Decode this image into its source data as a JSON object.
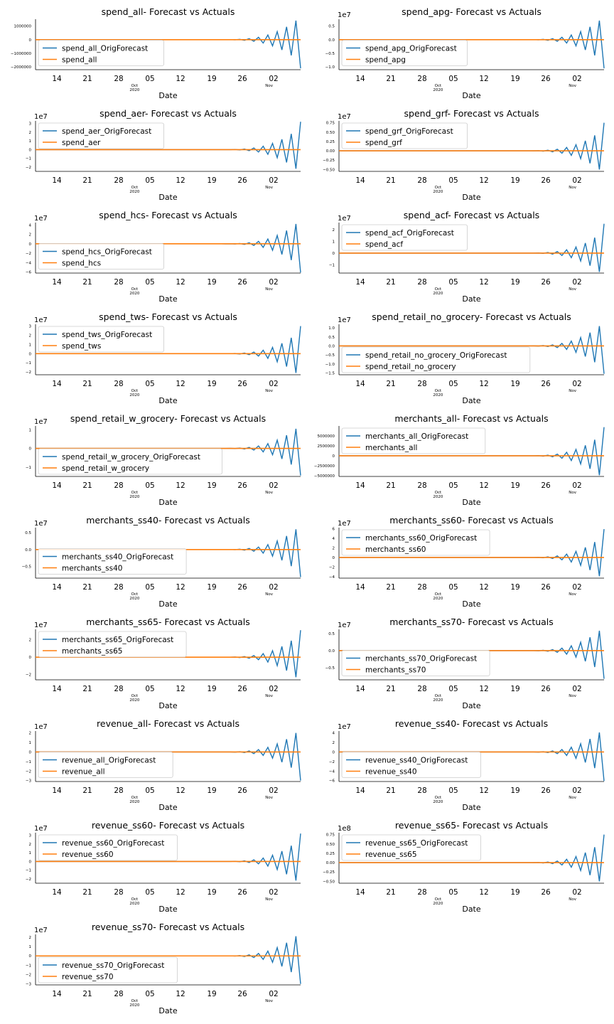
{
  "chart_data": [
    {
      "type": "line",
      "title": "spend_all- Forecast vs Actuals",
      "xlabel": "Date",
      "exponent": "",
      "yticks": [
        "1000000",
        "0",
        "−1000000",
        "−2000000"
      ],
      "ytick_values": [
        1000000,
        0,
        -1000000,
        -2000000
      ],
      "ylim": [
        -2200000,
        1500000
      ],
      "legend_loc": "center-left",
      "series": [
        {
          "name": "spend_all_OrigForecast",
          "color": "#1f77b4",
          "amplitude_end": 1400000,
          "final": -2100000
        },
        {
          "name": "spend_all",
          "color": "#ff7f0e",
          "value": 0
        }
      ]
    },
    {
      "type": "line",
      "title": "spend_apg- Forecast vs Actuals",
      "xlabel": "Date",
      "exponent": "1e7",
      "yticks": [
        "0.5",
        "0.0",
        "−0.5",
        "−1.0"
      ],
      "ytick_values": [
        0.5,
        0,
        -0.5,
        -1.0
      ],
      "ylim": [
        -1.1,
        0.75
      ],
      "legend_loc": "center-left",
      "series": [
        {
          "name": "spend_apg_OrigForecast",
          "color": "#1f77b4",
          "amplitude_end": 0.7,
          "final": -1.05
        },
        {
          "name": "spend_apg",
          "color": "#ff7f0e",
          "value": 0
        }
      ]
    },
    {
      "type": "line",
      "title": "spend_aer- Forecast vs Actuals",
      "xlabel": "Date",
      "exponent": "1e7",
      "yticks": [
        "3",
        "2",
        "1",
        "0",
        "−1",
        "−2"
      ],
      "ytick_values": [
        3,
        2,
        1,
        0,
        -1,
        -2
      ],
      "ylim": [
        -2.5,
        3.3
      ],
      "legend_loc": "top-left",
      "series": [
        {
          "name": "spend_aer_OrigForecast",
          "color": "#1f77b4",
          "amplitude_end": -2.2,
          "final": 3.2
        },
        {
          "name": "spend_aer",
          "color": "#ff7f0e",
          "value": 0
        }
      ]
    },
    {
      "type": "line",
      "title": "spend_grf- Forecast vs Actuals",
      "xlabel": "Date",
      "exponent": "1e7",
      "yticks": [
        "0.75",
        "0.50",
        "0.25",
        "0.00",
        "−0.25",
        "−0.50"
      ],
      "ytick_values": [
        0.75,
        0.5,
        0.25,
        0,
        -0.25,
        -0.5
      ],
      "ylim": [
        -0.55,
        0.8
      ],
      "legend_loc": "top-left",
      "series": [
        {
          "name": "spend_grf_OrigForecast",
          "color": "#1f77b4",
          "amplitude_end": -0.5,
          "final": 0.75
        },
        {
          "name": "spend_grf",
          "color": "#ff7f0e",
          "value": 0
        }
      ]
    },
    {
      "type": "line",
      "title": "spend_hcs- Forecast vs Actuals",
      "xlabel": "Date",
      "exponent": "1e7",
      "yticks": [
        "4",
        "2",
        "0",
        "−2",
        "−4",
        "−6"
      ],
      "ytick_values": [
        4,
        2,
        0,
        -2,
        -4,
        -6
      ],
      "ylim": [
        -6.2,
        4.5
      ],
      "legend_loc": "center-left",
      "series": [
        {
          "name": "spend_hcs_OrigForecast",
          "color": "#1f77b4",
          "amplitude_end": 4.2,
          "final": -6.1
        },
        {
          "name": "spend_hcs",
          "color": "#ff7f0e",
          "value": 0
        }
      ]
    },
    {
      "type": "line",
      "title": "spend_acf- Forecast vs Actuals",
      "xlabel": "Date",
      "exponent": "1e7",
      "yticks": [
        "2",
        "1",
        "0",
        "−1"
      ],
      "ytick_values": [
        2,
        1,
        0,
        -1
      ],
      "ylim": [
        -1.7,
        2.6
      ],
      "legend_loc": "top-left",
      "series": [
        {
          "name": "spend_acf_OrigForecast",
          "color": "#1f77b4",
          "amplitude_end": -1.6,
          "final": 2.5
        },
        {
          "name": "spend_acf",
          "color": "#ff7f0e",
          "value": 0
        }
      ]
    },
    {
      "type": "line",
      "title": "spend_tws- Forecast vs Actuals",
      "xlabel": "Date",
      "exponent": "1e7",
      "yticks": [
        "3",
        "2",
        "1",
        "0",
        "−1",
        "−2"
      ],
      "ytick_values": [
        3,
        2,
        1,
        0,
        -1,
        -2
      ],
      "ylim": [
        -2.3,
        3.2
      ],
      "legend_loc": "top-left",
      "series": [
        {
          "name": "spend_tws_OrigForecast",
          "color": "#1f77b4",
          "amplitude_end": -2.1,
          "final": 3.0
        },
        {
          "name": "spend_tws",
          "color": "#ff7f0e",
          "value": 0
        }
      ]
    },
    {
      "type": "line",
      "title": "spend_retail_no_grocery- Forecast vs Actuals",
      "xlabel": "Date",
      "exponent": "1e7",
      "yticks": [
        "1.0",
        "0.5",
        "0.0",
        "−0.5",
        "−1.0",
        "−1.5"
      ],
      "ytick_values": [
        1.0,
        0.5,
        0,
        -0.5,
        -1.0,
        -1.5
      ],
      "ylim": [
        -1.6,
        1.2
      ],
      "legend_loc": "bottom-left",
      "series": [
        {
          "name": "spend_retail_no_grocery_OrigForecast",
          "color": "#1f77b4",
          "amplitude_end": 1.1,
          "final": -1.55
        },
        {
          "name": "spend_retail_no_grocery",
          "color": "#ff7f0e",
          "value": 0
        }
      ]
    },
    {
      "type": "line",
      "title": "spend_retail_w_grocery- Forecast vs Actuals",
      "xlabel": "Date",
      "exponent": "1e7",
      "yticks": [
        "1",
        "0",
        "−1"
      ],
      "ytick_values": [
        1,
        0,
        -1
      ],
      "ylim": [
        -1.5,
        1.2
      ],
      "legend_loc": "bottom-left",
      "series": [
        {
          "name": "spend_retail_w_grocery_OrigForecast",
          "color": "#1f77b4",
          "amplitude_end": 1.05,
          "final": -1.45
        },
        {
          "name": "spend_retail_w_grocery",
          "color": "#ff7f0e",
          "value": 0
        }
      ]
    },
    {
      "type": "line",
      "title": "merchants_all- Forecast vs Actuals",
      "xlabel": "Date",
      "exponent": "",
      "yticks": [
        "5000000",
        "2500000",
        "0",
        "−2500000",
        "−5000000"
      ],
      "ytick_values": [
        5000000,
        2500000,
        0,
        -2500000,
        -5000000
      ],
      "ylim": [
        -5200000,
        7500000
      ],
      "legend_loc": "top-left",
      "series": [
        {
          "name": "merchants_all_OrigForecast",
          "color": "#1f77b4",
          "amplitude_end": -4900000,
          "final": 7200000
        },
        {
          "name": "merchants_all",
          "color": "#ff7f0e",
          "value": 0
        }
      ]
    },
    {
      "type": "line",
      "title": "merchants_ss40- Forecast vs Actuals",
      "xlabel": "Date",
      "exponent": "1e7",
      "yticks": [
        "0.5",
        "0.0",
        "−0.5"
      ],
      "ytick_values": [
        0.5,
        0,
        -0.5
      ],
      "ylim": [
        -0.85,
        0.65
      ],
      "legend_loc": "center-left",
      "series": [
        {
          "name": "merchants_ss40_OrigForecast",
          "color": "#1f77b4",
          "amplitude_end": 0.6,
          "final": -0.82
        },
        {
          "name": "merchants_ss40",
          "color": "#ff7f0e",
          "value": 0
        }
      ]
    },
    {
      "type": "line",
      "title": "merchants_ss60- Forecast vs Actuals",
      "xlabel": "Date",
      "exponent": "1e7",
      "yticks": [
        "6",
        "4",
        "2",
        "0",
        "−2",
        "−4"
      ],
      "ytick_values": [
        6,
        4,
        2,
        0,
        -2,
        -4
      ],
      "ylim": [
        -4.3,
        6.2
      ],
      "legend_loc": "top-left",
      "series": [
        {
          "name": "merchants_ss60_OrigForecast",
          "color": "#1f77b4",
          "amplitude_end": -3.9,
          "final": 5.9
        },
        {
          "name": "merchants_ss60",
          "color": "#ff7f0e",
          "value": 0
        }
      ]
    },
    {
      "type": "line",
      "title": "merchants_ss65- Forecast vs Actuals",
      "xlabel": "Date",
      "exponent": "1e7",
      "yticks": [
        "2",
        "0",
        "−2"
      ],
      "ytick_values": [
        2,
        0,
        -2
      ],
      "ylim": [
        -2.6,
        3.2
      ],
      "legend_loc": "top-left",
      "series": [
        {
          "name": "merchants_ss65_OrigForecast",
          "color": "#1f77b4",
          "amplitude_end": -2.3,
          "final": 3.1
        },
        {
          "name": "merchants_ss65",
          "color": "#ff7f0e",
          "value": 0
        }
      ]
    },
    {
      "type": "line",
      "title": "merchants_ss70- Forecast vs Actuals",
      "xlabel": "Date",
      "exponent": "1e7",
      "yticks": [
        "0.5",
        "0.0",
        "−0.5"
      ],
      "ytick_values": [
        0.5,
        0,
        -0.5
      ],
      "ylim": [
        -0.85,
        0.62
      ],
      "legend_loc": "center-left",
      "series": [
        {
          "name": "merchants_ss70_OrigForecast",
          "color": "#1f77b4",
          "amplitude_end": 0.58,
          "final": -0.82
        },
        {
          "name": "merchants_ss70",
          "color": "#ff7f0e",
          "value": 0
        }
      ]
    },
    {
      "type": "line",
      "title": "revenue_all- Forecast vs Actuals",
      "xlabel": "Date",
      "exponent": "1e7",
      "yticks": [
        "2",
        "1",
        "0",
        "−1",
        "−2",
        "−3"
      ],
      "ytick_values": [
        2,
        1,
        0,
        -1,
        -2,
        -3
      ],
      "ylim": [
        -3.1,
        2.2
      ],
      "legend_loc": "center-left",
      "series": [
        {
          "name": "revenue_all_OrigForecast",
          "color": "#1f77b4",
          "amplitude_end": 2.0,
          "final": -3.0
        },
        {
          "name": "revenue_all",
          "color": "#ff7f0e",
          "value": 0
        }
      ]
    },
    {
      "type": "line",
      "title": "revenue_ss40- Forecast vs Actuals",
      "xlabel": "Date",
      "exponent": "1e7",
      "yticks": [
        "4",
        "2",
        "0",
        "−2",
        "−4",
        "−6"
      ],
      "ytick_values": [
        4,
        2,
        0,
        -2,
        -4,
        -6
      ],
      "ylim": [
        -6.2,
        4.4
      ],
      "legend_loc": "center-left",
      "series": [
        {
          "name": "revenue_ss40_OrigForecast",
          "color": "#1f77b4",
          "amplitude_end": 4.1,
          "final": -6.1
        },
        {
          "name": "revenue_ss40",
          "color": "#ff7f0e",
          "value": 0
        }
      ]
    },
    {
      "type": "line",
      "title": "revenue_ss60- Forecast vs Actuals",
      "xlabel": "Date",
      "exponent": "1e7",
      "yticks": [
        "3",
        "2",
        "1",
        "0",
        "−1",
        "−2"
      ],
      "ytick_values": [
        3,
        2,
        1,
        0,
        -1,
        -2
      ],
      "ylim": [
        -2.5,
        3.3
      ],
      "legend_loc": "top-left",
      "series": [
        {
          "name": "revenue_ss60_OrigForecast",
          "color": "#1f77b4",
          "amplitude_end": -2.2,
          "final": 3.2
        },
        {
          "name": "revenue_ss60",
          "color": "#ff7f0e",
          "value": 0
        }
      ]
    },
    {
      "type": "line",
      "title": "revenue_ss65- Forecast vs Actuals",
      "xlabel": "Date",
      "exponent": "1e8",
      "yticks": [
        "0.75",
        "0.50",
        "0.25",
        "0.00",
        "−0.25",
        "−0.50"
      ],
      "ytick_values": [
        0.75,
        0.5,
        0.25,
        0,
        -0.25,
        -0.5
      ],
      "ylim": [
        -0.55,
        0.8
      ],
      "legend_loc": "top-left",
      "series": [
        {
          "name": "revenue_ss65_OrigForecast",
          "color": "#1f77b4",
          "amplitude_end": -0.5,
          "final": 0.75
        },
        {
          "name": "revenue_ss65",
          "color": "#ff7f0e",
          "value": 0
        }
      ]
    },
    {
      "type": "line",
      "title": "revenue_ss70- Forecast vs Actuals",
      "xlabel": "Date",
      "exponent": "1e7",
      "yticks": [
        "2",
        "1",
        "0",
        "−1",
        "−2",
        "−3"
      ],
      "ytick_values": [
        2,
        1,
        0,
        -1,
        -2,
        -3
      ],
      "ylim": [
        -3.1,
        2.3
      ],
      "legend_loc": "bottom-left",
      "series": [
        {
          "name": "revenue_ss70_OrigForecast",
          "color": "#1f77b4",
          "amplitude_end": 2.1,
          "final": -3.0
        },
        {
          "name": "revenue_ss70",
          "color": "#ff7f0e",
          "value": 0
        }
      ]
    }
  ],
  "x_axis": {
    "ticks": [
      "14",
      "21",
      "28",
      "05",
      "12",
      "19",
      "26",
      "02"
    ],
    "month_labels": [
      {
        "month": "Oct",
        "year": "2020",
        "after_tick": "28"
      },
      {
        "month": "Nov",
        "year": "",
        "after_tick": "02"
      }
    ]
  }
}
